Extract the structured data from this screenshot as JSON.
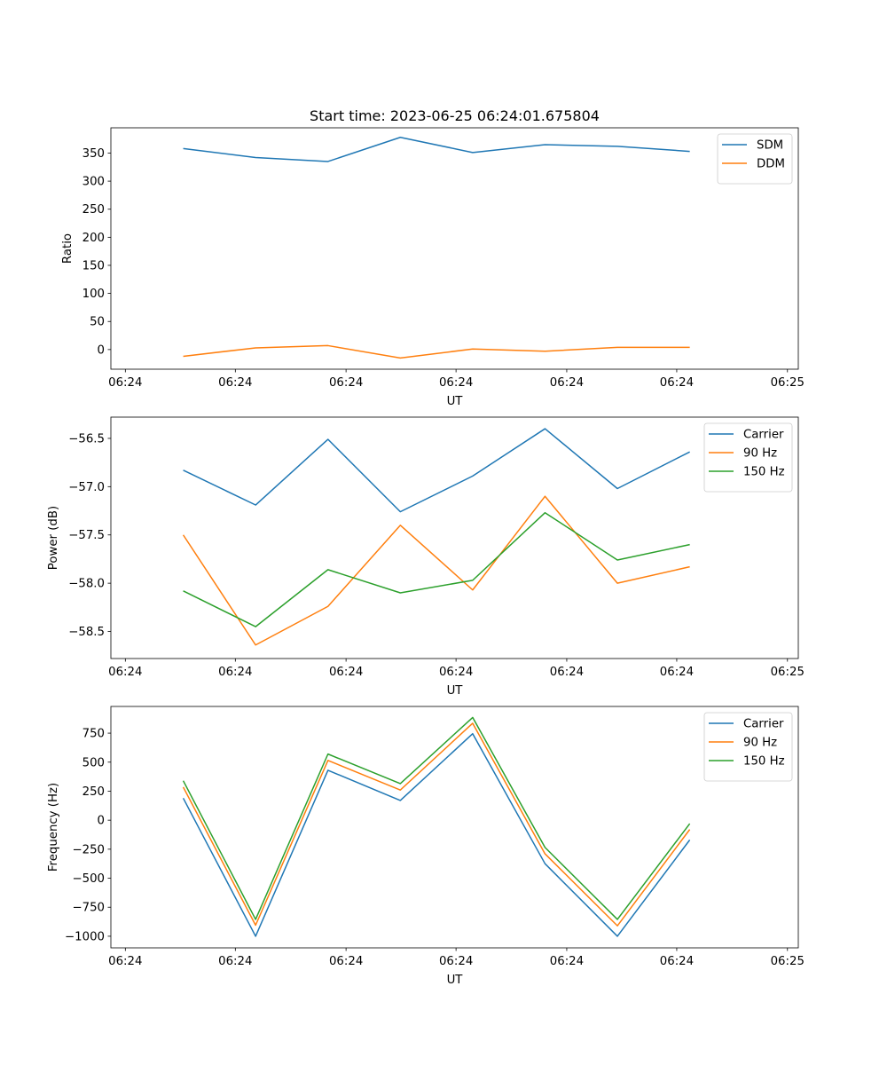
{
  "figure": {
    "title": "Start time: 2023-06-25 06:24:01.675804"
  },
  "chart_data": [
    {
      "type": "line",
      "title": "Start time: 2023-06-25 06:24:01.675804",
      "xlabel": "UT",
      "ylabel": "Ratio",
      "x": [
        1,
        2,
        3,
        4,
        5,
        6,
        7,
        8
      ],
      "x_tick_values": [
        0.2,
        1.72,
        3.25,
        4.77,
        6.3,
        7.82,
        9.35
      ],
      "x_tick_labels": [
        "06:24",
        "06:24",
        "06:24",
        "06:24",
        "06:24",
        "06:24",
        "06:25"
      ],
      "xlim": [
        0,
        9.5
      ],
      "ylim": [
        -35,
        395
      ],
      "y_ticks": [
        0,
        50,
        100,
        150,
        200,
        250,
        300,
        350
      ],
      "legend_position": "upper right",
      "grid": false,
      "series": [
        {
          "name": "SDM",
          "color": "#1f77b4",
          "values": [
            358,
            342,
            335,
            378,
            351,
            365,
            362,
            353
          ]
        },
        {
          "name": "DDM",
          "color": "#ff7f0e",
          "values": [
            -12,
            3,
            7,
            -15,
            1,
            -3,
            4,
            4
          ]
        }
      ]
    },
    {
      "type": "line",
      "title": "",
      "xlabel": "UT",
      "ylabel": "Power (dB)",
      "x": [
        1,
        2,
        3,
        4,
        5,
        6,
        7,
        8
      ],
      "x_tick_values": [
        0.2,
        1.72,
        3.25,
        4.77,
        6.3,
        7.82,
        9.35
      ],
      "x_tick_labels": [
        "06:24",
        "06:24",
        "06:24",
        "06:24",
        "06:24",
        "06:24",
        "06:25"
      ],
      "xlim": [
        0,
        9.5
      ],
      "ylim": [
        -58.78,
        -56.28
      ],
      "y_ticks": [
        -58.5,
        -58.0,
        -57.5,
        -57.0,
        -56.5
      ],
      "y_tick_labels": [
        "−58.5",
        "−58.0",
        "−57.5",
        "−57.0",
        "−56.5"
      ],
      "legend_position": "upper right",
      "grid": false,
      "series": [
        {
          "name": "Carrier",
          "color": "#1f77b4",
          "values": [
            -56.83,
            -57.19,
            -56.51,
            -57.26,
            -56.89,
            -56.4,
            -57.02,
            -56.64
          ]
        },
        {
          "name": "90 Hz",
          "color": "#ff7f0e",
          "values": [
            -57.5,
            -58.64,
            -58.24,
            -57.4,
            -58.07,
            -57.1,
            -58.0,
            -57.83
          ]
        },
        {
          "name": "150 Hz",
          "color": "#2ca02c",
          "values": [
            -58.08,
            -58.45,
            -57.86,
            -58.1,
            -57.97,
            -57.27,
            -57.76,
            -57.6
          ]
        }
      ]
    },
    {
      "type": "line",
      "title": "",
      "xlabel": "UT",
      "ylabel": "Frequency (Hz)",
      "x": [
        1,
        2,
        3,
        4,
        5,
        6,
        7,
        8
      ],
      "x_tick_values": [
        0.2,
        1.72,
        3.25,
        4.77,
        6.3,
        7.82,
        9.35
      ],
      "x_tick_labels": [
        "06:24",
        "06:24",
        "06:24",
        "06:24",
        "06:24",
        "06:24",
        "06:25"
      ],
      "xlim": [
        0,
        9.5
      ],
      "ylim": [
        -1100,
        980
      ],
      "y_ticks": [
        -1000,
        -750,
        -500,
        -250,
        0,
        250,
        500,
        750
      ],
      "y_tick_labels": [
        "−1000",
        "−750",
        "−500",
        "−250",
        "0",
        "250",
        "500",
        "750"
      ],
      "legend_position": "upper right",
      "grid": false,
      "series": [
        {
          "name": "Carrier",
          "color": "#1f77b4",
          "values": [
            190,
            -1000,
            430,
            170,
            745,
            -375,
            -1000,
            -170
          ]
        },
        {
          "name": "90 Hz",
          "color": "#ff7f0e",
          "values": [
            285,
            -905,
            515,
            260,
            835,
            -290,
            -910,
            -80
          ]
        },
        {
          "name": "150 Hz",
          "color": "#2ca02c",
          "values": [
            340,
            -855,
            570,
            315,
            885,
            -235,
            -855,
            -30
          ]
        }
      ]
    }
  ]
}
